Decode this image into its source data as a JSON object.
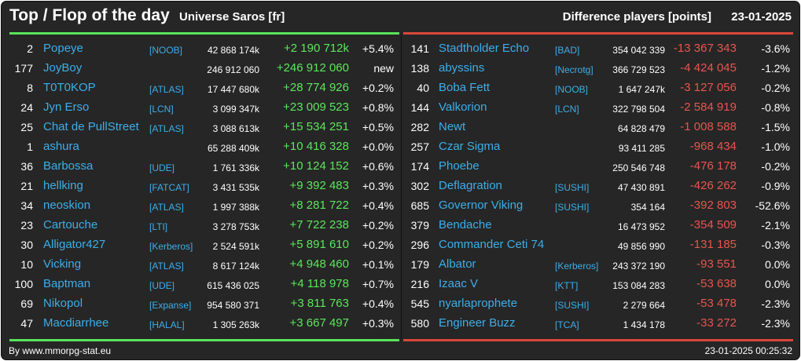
{
  "header": {
    "title": "Top / Flop of the day",
    "universe": "Universe Saros [fr]",
    "metric": "Difference players [points]",
    "date": "23-01-2025"
  },
  "colors": {
    "background": "#262626",
    "top_accent": "#58e35a",
    "flop_accent": "#d9473b",
    "link": "#3daee9",
    "positive": "#5ce65c",
    "negative": "#e8554e"
  },
  "top": [
    {
      "rank": "2",
      "name": "Popeye",
      "alliance": "[NOOB]",
      "points": "42 868 174k",
      "diff": "+2 190 712k",
      "pct": "+5.4%"
    },
    {
      "rank": "177",
      "name": "JoyBoy",
      "alliance": "",
      "points": "246 912 060",
      "diff": "+246 912 060",
      "pct": "new"
    },
    {
      "rank": "8",
      "name": "T0T0KOP",
      "alliance": "[ATLAS]",
      "points": "17 447 680k",
      "diff": "+28 774 926",
      "pct": "+0.2%"
    },
    {
      "rank": "24",
      "name": "Jyn Erso",
      "alliance": "[LCN]",
      "points": "3 099 347k",
      "diff": "+23 009 523",
      "pct": "+0.8%"
    },
    {
      "rank": "25",
      "name": "Chat de PullStreet",
      "alliance": "[ATLAS]",
      "points": "3 088 613k",
      "diff": "+15 534 251",
      "pct": "+0.5%"
    },
    {
      "rank": "1",
      "name": "ashura",
      "alliance": "",
      "points": "65 288 409k",
      "diff": "+10 416 328",
      "pct": "+0.0%"
    },
    {
      "rank": "36",
      "name": "Barbossa",
      "alliance": "[UDE]",
      "points": "1 761 336k",
      "diff": "+10 124 152",
      "pct": "+0.6%"
    },
    {
      "rank": "21",
      "name": "hellking",
      "alliance": "[FATCAT]",
      "points": "3 431 535k",
      "diff": "+9 392 483",
      "pct": "+0.3%"
    },
    {
      "rank": "34",
      "name": "neoskion",
      "alliance": "[ATLAS]",
      "points": "1 997 388k",
      "diff": "+8 281 722",
      "pct": "+0.4%"
    },
    {
      "rank": "23",
      "name": "Cartouche",
      "alliance": "[LTI]",
      "points": "3 278 753k",
      "diff": "+7 722 238",
      "pct": "+0.2%"
    },
    {
      "rank": "30",
      "name": "Alligator427",
      "alliance": "[Kerberos]",
      "points": "2 524 591k",
      "diff": "+5 891 610",
      "pct": "+0.2%"
    },
    {
      "rank": "10",
      "name": "Vicking",
      "alliance": "[ATLAS]",
      "points": "8 617 124k",
      "diff": "+4 948 460",
      "pct": "+0.1%"
    },
    {
      "rank": "100",
      "name": "Baptman",
      "alliance": "[UDE]",
      "points": "615 436 025",
      "diff": "+4 118 978",
      "pct": "+0.7%"
    },
    {
      "rank": "69",
      "name": "Nikopol",
      "alliance": "[Expanse]",
      "points": "954 580 371",
      "diff": "+3 811 763",
      "pct": "+0.4%"
    },
    {
      "rank": "47",
      "name": "Macdiarrhee",
      "alliance": "[HALAL]",
      "points": "1 305 263k",
      "diff": "+3 667 497",
      "pct": "+0.3%"
    }
  ],
  "flop": [
    {
      "rank": "141",
      "name": "Stadtholder Echo",
      "alliance": "[BAD]",
      "points": "354 042 339",
      "diff": "-13 367 343",
      "pct": "-3.6%"
    },
    {
      "rank": "138",
      "name": "abyssins",
      "alliance": "[Necrotg]",
      "points": "366 729 523",
      "diff": "-4 424 045",
      "pct": "-1.2%"
    },
    {
      "rank": "40",
      "name": "Boba Fett",
      "alliance": "[NOOB]",
      "points": "1 647 247k",
      "diff": "-3 127 056",
      "pct": "-0.2%"
    },
    {
      "rank": "144",
      "name": "Valkorion",
      "alliance": "[LCN]",
      "points": "322 798 504",
      "diff": "-2 584 919",
      "pct": "-0.8%"
    },
    {
      "rank": "282",
      "name": "Newt",
      "alliance": "",
      "points": "64 828 479",
      "diff": "-1 008 588",
      "pct": "-1.5%"
    },
    {
      "rank": "257",
      "name": "Czar Sigma",
      "alliance": "",
      "points": "93 411 285",
      "diff": "-968 434",
      "pct": "-1.0%"
    },
    {
      "rank": "174",
      "name": "Phoebe",
      "alliance": "",
      "points": "250 546 748",
      "diff": "-476 178",
      "pct": "-0.2%"
    },
    {
      "rank": "302",
      "name": "Deflagration",
      "alliance": "[SUSHI]",
      "points": "47 430 891",
      "diff": "-426 262",
      "pct": "-0.9%"
    },
    {
      "rank": "685",
      "name": "Governor Viking",
      "alliance": "[SUSHI]",
      "points": "354 164",
      "diff": "-392 803",
      "pct": "-52.6%"
    },
    {
      "rank": "379",
      "name": "Bendache",
      "alliance": "",
      "points": "16 473 952",
      "diff": "-354 509",
      "pct": "-2.1%"
    },
    {
      "rank": "296",
      "name": "Commander Ceti 74",
      "alliance": "",
      "points": "49 856 990",
      "diff": "-131 185",
      "pct": "-0.3%"
    },
    {
      "rank": "179",
      "name": "Albator",
      "alliance": "[Kerberos]",
      "points": "243 372 190",
      "diff": "-93 551",
      "pct": "0.0%"
    },
    {
      "rank": "216",
      "name": "Izaac V",
      "alliance": "[KTT]",
      "points": "153 084 283",
      "diff": "-53 638",
      "pct": "0.0%"
    },
    {
      "rank": "545",
      "name": "nyarlaprophete",
      "alliance": "[SUSHI]",
      "points": "2 279 664",
      "diff": "-53 478",
      "pct": "-2.3%"
    },
    {
      "rank": "580",
      "name": "Engineer Buzz",
      "alliance": "[TCA]",
      "points": "1 434 178",
      "diff": "-33 272",
      "pct": "-2.3%"
    }
  ],
  "footer": {
    "credit": "By www.mmorpg-stat.eu",
    "timestamp": "23-01-2025 00:25:32"
  }
}
